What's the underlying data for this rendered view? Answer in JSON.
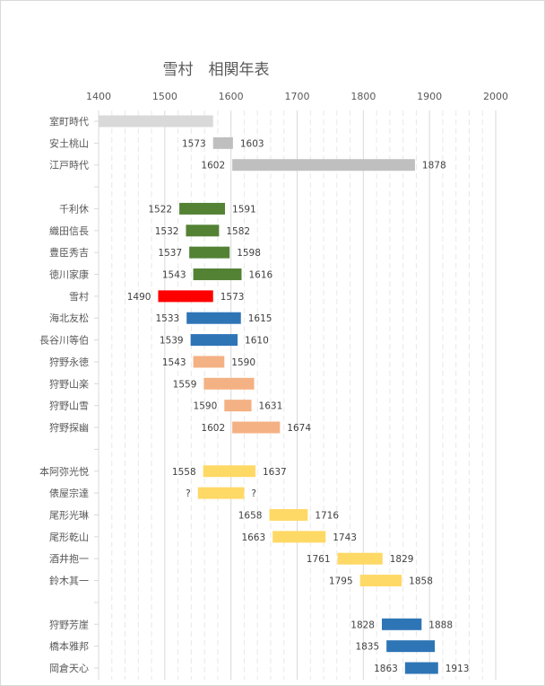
{
  "chart_data": {
    "type": "bar",
    "orientation": "horizontal-floating",
    "title": "雪村　相関年表",
    "xlim": [
      1400,
      2000
    ],
    "x_ticks": [
      "1400",
      "1500",
      "1600",
      "1700",
      "1800",
      "1900",
      "2000"
    ],
    "grid": "vertical major every 100, minor every 20",
    "rows": [
      {
        "name": "室町時代",
        "start": 1400,
        "end": 1573,
        "start_label": "",
        "end_label": "",
        "color": "#d9d9d9"
      },
      {
        "name": "安土桃山",
        "start": 1573,
        "end": 1603,
        "start_label": "1573",
        "end_label": "1603",
        "color": "#bfbfbf"
      },
      {
        "name": "江戸時代",
        "start": 1602,
        "end": 1878,
        "start_label": "1602",
        "end_label": "1878",
        "color": "#bfbfbf"
      },
      {
        "name": "",
        "start": null,
        "end": null
      },
      {
        "name": "千利休",
        "start": 1522,
        "end": 1591,
        "start_label": "1522",
        "end_label": "1591",
        "color": "#548235"
      },
      {
        "name": "織田信長",
        "start": 1532,
        "end": 1582,
        "start_label": "1532",
        "end_label": "1582",
        "color": "#548235"
      },
      {
        "name": "豊臣秀吉",
        "start": 1537,
        "end": 1598,
        "start_label": "1537",
        "end_label": "1598",
        "color": "#548235"
      },
      {
        "name": "徳川家康",
        "start": 1543,
        "end": 1616,
        "start_label": "1543",
        "end_label": "1616",
        "color": "#548235"
      },
      {
        "name": "雪村",
        "start": 1490,
        "end": 1573,
        "start_label": "1490",
        "end_label": "1573",
        "color": "#ff0000"
      },
      {
        "name": "海北友松",
        "start": 1533,
        "end": 1615,
        "start_label": "1533",
        "end_label": "1615",
        "color": "#2e75b6"
      },
      {
        "name": "長谷川等伯",
        "start": 1539,
        "end": 1610,
        "start_label": "1539",
        "end_label": "1610",
        "color": "#2e75b6"
      },
      {
        "name": "狩野永徳",
        "start": 1543,
        "end": 1590,
        "start_label": "1543",
        "end_label": "1590",
        "color": "#f4b183"
      },
      {
        "name": "狩野山楽",
        "start": 1559,
        "end": 1635,
        "start_label": "1559",
        "end_label": "",
        "color": "#f4b183"
      },
      {
        "name": "狩野山雪",
        "start": 1590,
        "end": 1631,
        "start_label": "1590",
        "end_label": "1631",
        "color": "#f4b183"
      },
      {
        "name": "狩野探幽",
        "start": 1602,
        "end": 1674,
        "start_label": "1602",
        "end_label": "1674",
        "color": "#f4b183"
      },
      {
        "name": "",
        "start": null,
        "end": null
      },
      {
        "name": "本阿弥光悦",
        "start": 1558,
        "end": 1637,
        "start_label": "1558",
        "end_label": "1637",
        "color": "#ffd966"
      },
      {
        "name": "俵屋宗達",
        "start": 1550,
        "end": 1620,
        "start_label": "?",
        "end_label": "?",
        "color": "#ffd966"
      },
      {
        "name": "尾形光琳",
        "start": 1658,
        "end": 1716,
        "start_label": "1658",
        "end_label": "1716",
        "color": "#ffd966"
      },
      {
        "name": "尾形乾山",
        "start": 1663,
        "end": 1743,
        "start_label": "1663",
        "end_label": "1743",
        "color": "#ffd966"
      },
      {
        "name": "酒井抱一",
        "start": 1761,
        "end": 1829,
        "start_label": "1761",
        "end_label": "1829",
        "color": "#ffd966"
      },
      {
        "name": "鈴木其一",
        "start": 1795,
        "end": 1858,
        "start_label": "1795",
        "end_label": "1858",
        "color": "#ffd966"
      },
      {
        "name": "",
        "start": null,
        "end": null
      },
      {
        "name": "狩野芳崖",
        "start": 1828,
        "end": 1888,
        "start_label": "1828",
        "end_label": "1888",
        "color": "#2e75b6"
      },
      {
        "name": "橋本雅邦",
        "start": 1835,
        "end": 1908,
        "start_label": "1835",
        "end_label": "",
        "color": "#2e75b6"
      },
      {
        "name": "岡倉天心",
        "start": 1863,
        "end": 1913,
        "start_label": "1863",
        "end_label": "1913",
        "color": "#2e75b6"
      }
    ]
  }
}
